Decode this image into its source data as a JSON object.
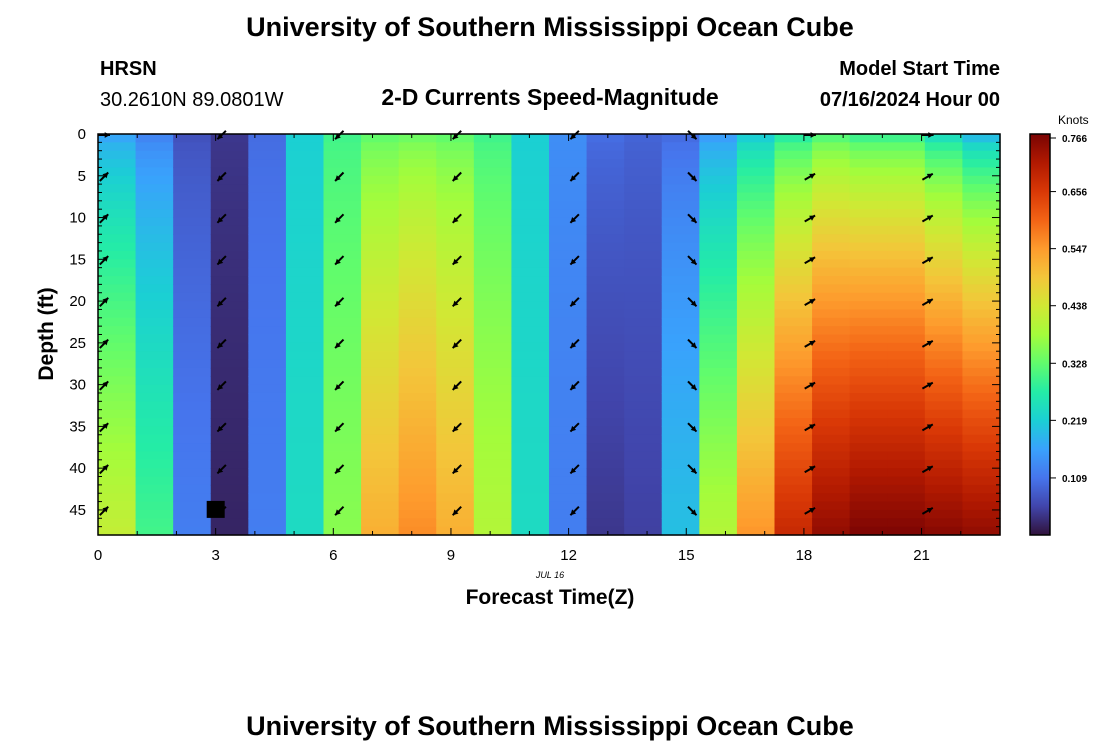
{
  "header": {
    "title": "University of Southern Mississippi Ocean Cube",
    "station": "HRSN",
    "location": "30.2610N  89.0801W",
    "subtitle": "2-D Currents Speed-Magnitude",
    "model_label": "Model Start Time",
    "model_time": "07/16/2024 Hour 00"
  },
  "footer": {
    "title": "University of Southern Mississippi Ocean Cube"
  },
  "chart_data": {
    "type": "heatmap",
    "title": "2-D Currents Speed-Magnitude",
    "xlabel": "Forecast Time(Z)",
    "ylabel": "Depth (ft)",
    "date_label": "JUL 16",
    "xlim": [
      0,
      23
    ],
    "ylim": [
      0,
      48
    ],
    "x_ticks": [
      0,
      3,
      6,
      9,
      12,
      15,
      18,
      21
    ],
    "y_ticks": [
      0,
      5,
      10,
      15,
      20,
      25,
      30,
      35,
      40,
      45
    ],
    "hours": [
      0,
      1,
      2,
      3,
      4,
      5,
      6,
      7,
      8,
      9,
      10,
      11,
      12,
      13,
      14,
      15,
      16,
      17,
      18,
      19,
      20,
      21,
      22,
      23
    ],
    "depth_levels": [
      0,
      5,
      10,
      15,
      20,
      25,
      30,
      35,
      40,
      45
    ],
    "speed_surface": [
      0.17,
      0.13,
      0.07,
      0.04,
      0.1,
      0.22,
      0.3,
      0.33,
      0.34,
      0.33,
      0.3,
      0.22,
      0.14,
      0.1,
      0.09,
      0.1,
      0.16,
      0.22,
      0.28,
      0.32,
      0.3,
      0.3,
      0.25,
      0.2
    ],
    "speed_bottom": [
      0.42,
      0.3,
      0.12,
      0.02,
      0.12,
      0.24,
      0.36,
      0.52,
      0.56,
      0.52,
      0.4,
      0.24,
      0.12,
      0.04,
      0.05,
      0.2,
      0.4,
      0.55,
      0.68,
      0.74,
      0.76,
      0.76,
      0.75,
      0.74
    ],
    "colorbar": {
      "label": "Knots",
      "min": 0.0,
      "max": 0.766,
      "ticks": [
        "0.766",
        "0.656",
        "0.547",
        "0.438",
        "0.328",
        "0.219",
        "0.109"
      ],
      "colors": [
        "#30123b",
        "#4145ab",
        "#4675ed",
        "#39a2fc",
        "#1bcfd4",
        "#24eca6",
        "#61fc6c",
        "#a4fc3b",
        "#d1e834",
        "#f3c63a",
        "#fe9b2d",
        "#f36315",
        "#d93806",
        "#b11901",
        "#7a0403"
      ]
    },
    "arrow_hours": [
      0,
      3,
      6,
      9,
      12,
      15,
      18,
      21
    ],
    "arrow_direction_deg": [
      45,
      225,
      225,
      225,
      225,
      135,
      60,
      60
    ],
    "arrow_direction_surface_deg": [
      90,
      225,
      225,
      225,
      225,
      135,
      90,
      90
    ]
  }
}
